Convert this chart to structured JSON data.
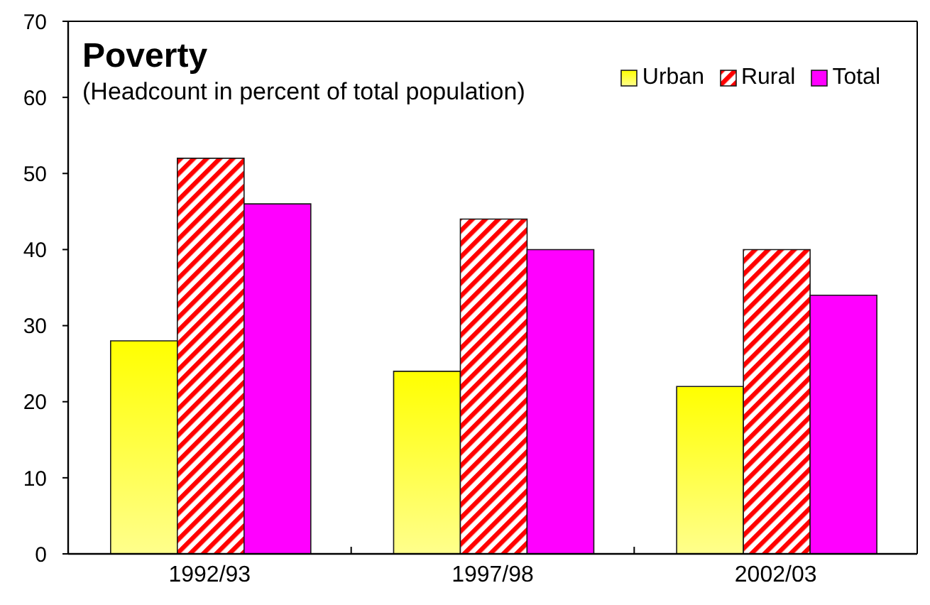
{
  "chart_data": {
    "type": "bar",
    "title": "Poverty",
    "subtitle": "(Headcount in percent of total population)",
    "categories": [
      "1992/93",
      "1997/98",
      "2002/03"
    ],
    "series": [
      {
        "name": "Urban",
        "color": "#ffff00",
        "values": [
          28,
          24,
          22
        ]
      },
      {
        "name": "Rural",
        "color": "#ff0000",
        "values": [
          52,
          44,
          40
        ]
      },
      {
        "name": "Total",
        "color": "#ff00ff",
        "values": [
          46,
          40,
          34
        ]
      }
    ],
    "ylim": [
      0,
      70
    ],
    "yticks": [
      0,
      10,
      20,
      30,
      40,
      50,
      60,
      70
    ],
    "legend": "top right"
  }
}
